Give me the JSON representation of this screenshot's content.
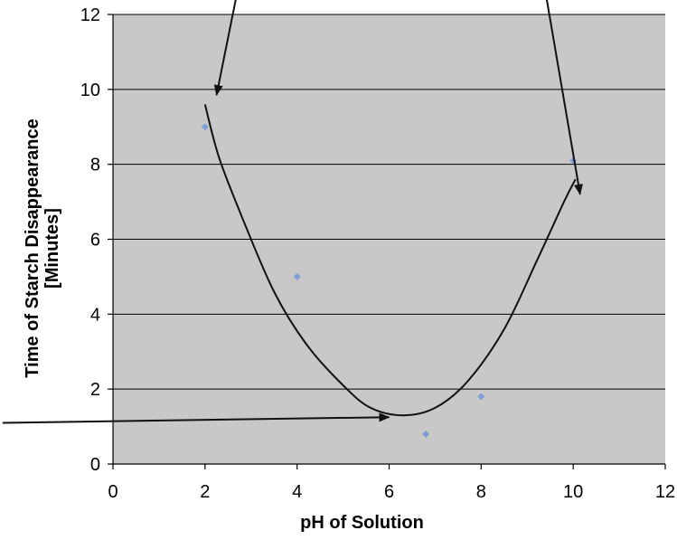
{
  "chart_data": {
    "type": "scatter",
    "title": "",
    "xlabel": "pH of Solution",
    "ylabel_line1": "Time of Starch Disappearance",
    "ylabel_line2": "[Minutes]",
    "xlim": [
      0,
      12
    ],
    "ylim": [
      0,
      12
    ],
    "x_ticks": [
      "0",
      "2",
      "4",
      "6",
      "8",
      "10",
      "12"
    ],
    "y_ticks": [
      "0",
      "2",
      "4",
      "6",
      "8",
      "10",
      "12"
    ],
    "grid": "horizontal",
    "legend": "none",
    "series": [
      {
        "points": [
          {
            "x": 2,
            "y": 9
          },
          {
            "x": 4,
            "y": 5
          },
          {
            "x": 6.8,
            "y": 0.8
          },
          {
            "x": 8,
            "y": 1.8
          },
          {
            "x": 10,
            "y": 8.1
          }
        ]
      }
    ],
    "trend_curve": [
      {
        "x": 2.0,
        "y": 9.6
      },
      {
        "x": 2.3,
        "y": 8.2
      },
      {
        "x": 2.8,
        "y": 6.6
      },
      {
        "x": 3.5,
        "y": 4.6
      },
      {
        "x": 4.2,
        "y": 3.2
      },
      {
        "x": 5.0,
        "y": 2.1
      },
      {
        "x": 5.6,
        "y": 1.5
      },
      {
        "x": 6.3,
        "y": 1.3
      },
      {
        "x": 7.0,
        "y": 1.5
      },
      {
        "x": 7.7,
        "y": 2.2
      },
      {
        "x": 8.5,
        "y": 3.6
      },
      {
        "x": 9.2,
        "y": 5.4
      },
      {
        "x": 9.8,
        "y": 7.0
      },
      {
        "x": 10.05,
        "y": 7.6
      }
    ],
    "annotation_arrows": [
      {
        "from": {
          "x": 2.75,
          "y": 12.9
        },
        "to": {
          "x": 2.25,
          "y": 9.85
        }
      },
      {
        "from": {
          "x": 9.3,
          "y": 13.3
        },
        "to": {
          "x": 10.15,
          "y": 7.2
        }
      },
      {
        "from": {
          "x": -2.4,
          "y": 1.1
        },
        "to": {
          "x": 6.0,
          "y": 1.25
        }
      }
    ],
    "colors": {
      "plot_background": "#c8c8c8",
      "gridline": "#000000",
      "marker": "#7e9ed6",
      "curve": "#111111",
      "arrow": "#111111"
    }
  }
}
